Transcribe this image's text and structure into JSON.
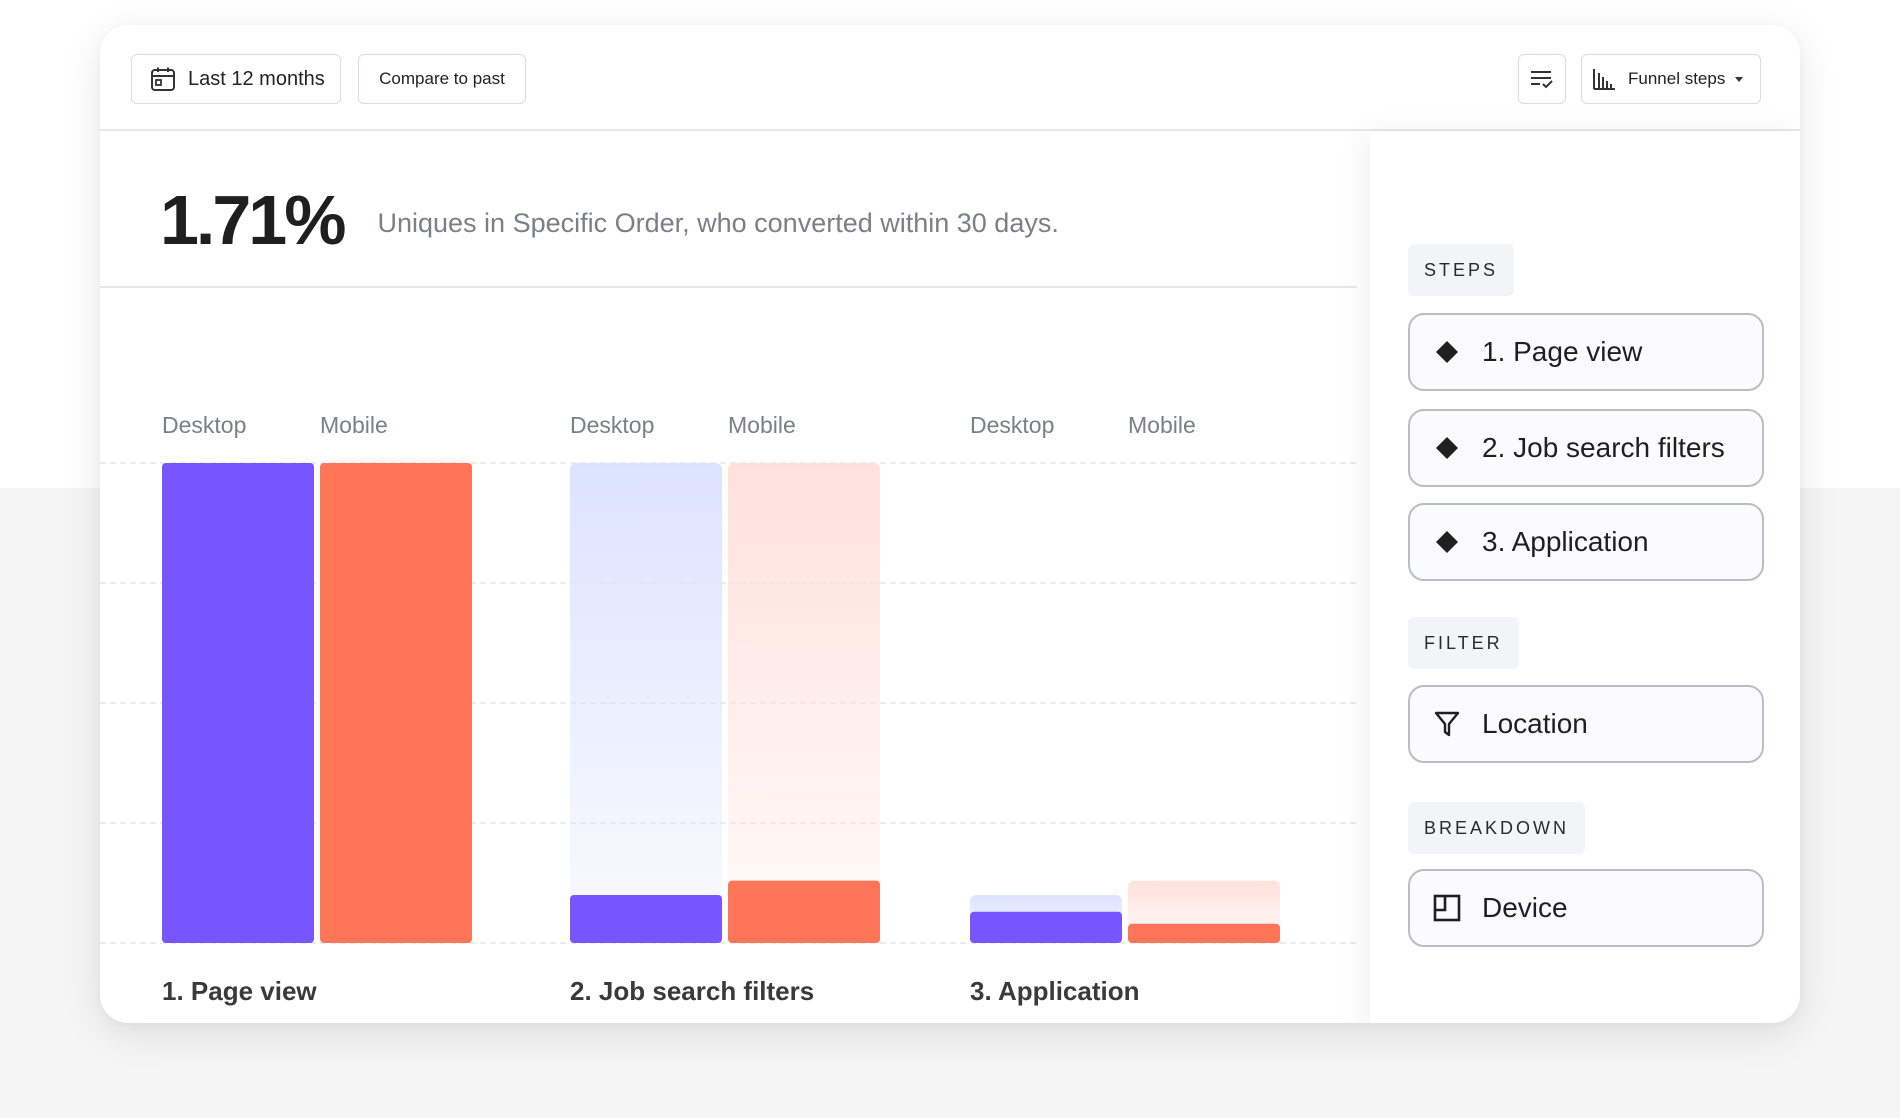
{
  "toolbar": {
    "date_range_label": "Last 12 months",
    "compare_label": "Compare to past",
    "chart_type_label": "Funnel steps",
    "icons": {
      "date": "calendar-icon",
      "settings": "list-check-icon",
      "chart_type": "bar-chart-icon",
      "dropdown": "caret-down-icon"
    }
  },
  "summary": {
    "value": "1.71%",
    "description": "Uniques in Specific Order, who converted within 30 days."
  },
  "colors": {
    "desktop": "#7856ff",
    "mobile": "#ff7557",
    "desktop_ghost": "#dce3ff",
    "mobile_ghost": "#ffe1db",
    "grid": "#e3e6ea"
  },
  "chart_data": {
    "type": "bar",
    "categories": [
      "1. Page view",
      "2. Job search filters",
      "3. Application"
    ],
    "series": [
      {
        "name": "Desktop",
        "values": [
          100,
          10,
          6.5
        ]
      },
      {
        "name": "Mobile",
        "values": [
          100,
          13,
          4
        ]
      }
    ],
    "ghost_previous_step": true,
    "ylim": [
      0,
      100
    ],
    "grid": true,
    "legend": "per-group-top"
  },
  "panel": {
    "steps_heading": "STEPS",
    "steps": [
      {
        "label": "1. Page view",
        "icon": "diamond-icon"
      },
      {
        "label": "2. Job search filters",
        "icon": "diamond-icon"
      },
      {
        "label": "3. Application",
        "icon": "diamond-icon"
      }
    ],
    "filter_heading": "FILTER",
    "filters": [
      {
        "label": "Location",
        "icon": "filter-funnel-icon"
      }
    ],
    "breakdown_heading": "BREAKDOWN",
    "breakdowns": [
      {
        "label": "Device",
        "icon": "breakdown-icon"
      }
    ]
  }
}
